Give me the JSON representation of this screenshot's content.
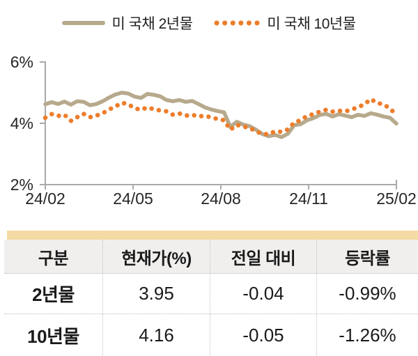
{
  "legend": {
    "items": [
      {
        "label": "미 국채 2년물",
        "style": "solid"
      },
      {
        "label": "미 국채 10년물",
        "style": "dotted"
      }
    ]
  },
  "colors": {
    "series_2y": "#b7a98c",
    "series_10y": "#ee7d2b",
    "axis": "#a9a9a9",
    "axis_text": "#262626",
    "table_top_bar": "#f4dba3",
    "table_header_bg": "#f1efee"
  },
  "chart_data": {
    "type": "line",
    "title": "",
    "xlabel": "",
    "ylabel": "",
    "grid": false,
    "legend_position": "top-center",
    "x_tick_labels": [
      "24/02",
      "24/05",
      "24/08",
      "24/11",
      "25/02"
    ],
    "y_ticks": [
      6,
      4,
      2
    ],
    "y_tick_labels": [
      "6%",
      "4%",
      "2%"
    ],
    "ylim": [
      2,
      6
    ],
    "series": [
      {
        "name": "미 국채 2년물",
        "style": "solid",
        "values": [
          4.62,
          4.69,
          4.63,
          4.71,
          4.61,
          4.72,
          4.7,
          4.59,
          4.63,
          4.72,
          4.84,
          4.94,
          5.0,
          4.97,
          4.87,
          4.83,
          4.96,
          4.93,
          4.88,
          4.76,
          4.72,
          4.76,
          4.7,
          4.73,
          4.63,
          4.52,
          4.45,
          4.4,
          4.36,
          3.88,
          4.05,
          3.96,
          3.91,
          3.79,
          3.65,
          3.58,
          3.62,
          3.55,
          3.66,
          3.94,
          3.97,
          4.1,
          4.17,
          4.27,
          4.31,
          4.22,
          4.3,
          4.25,
          4.2,
          4.28,
          4.24,
          4.33,
          4.28,
          4.22,
          4.18,
          3.99
        ]
      },
      {
        "name": "미 국채 10년물",
        "style": "dotted",
        "values": [
          4.18,
          4.3,
          4.24,
          4.28,
          4.08,
          4.2,
          4.31,
          4.2,
          4.25,
          4.33,
          4.45,
          4.55,
          4.67,
          4.62,
          4.49,
          4.44,
          4.52,
          4.46,
          4.42,
          4.39,
          4.28,
          4.32,
          4.25,
          4.28,
          4.22,
          4.25,
          4.19,
          4.14,
          4.1,
          3.79,
          3.95,
          3.89,
          3.86,
          3.73,
          3.66,
          3.64,
          3.74,
          3.72,
          3.8,
          4.03,
          4.1,
          4.24,
          4.3,
          4.38,
          4.44,
          4.38,
          4.41,
          4.39,
          4.45,
          4.53,
          4.62,
          4.79,
          4.66,
          4.62,
          4.48,
          4.28
        ]
      }
    ]
  },
  "table": {
    "headers": [
      "구분",
      "현재가(%)",
      "전일 대비",
      "등락률"
    ],
    "rows": [
      [
        "2년물",
        "3.95",
        "-0.04",
        "-0.99%"
      ],
      [
        "10년물",
        "4.16",
        "-0.05",
        "-1.26%"
      ]
    ]
  }
}
